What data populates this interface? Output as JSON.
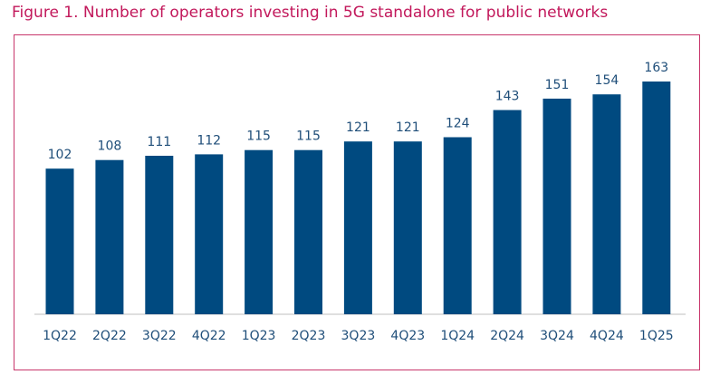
{
  "figure": {
    "title": "Figure 1. Number of operators investing in 5G standalone for public networks"
  },
  "colors": {
    "bar": "#004a80",
    "labels": "#1f4e79",
    "title": "#c2185b",
    "border": "#c8366b"
  },
  "chart_data": {
    "type": "bar",
    "title": "Figure 1. Number of operators investing in 5G standalone for public networks",
    "categories": [
      "1Q22",
      "2Q22",
      "3Q22",
      "4Q22",
      "1Q23",
      "2Q23",
      "3Q23",
      "4Q23",
      "1Q24",
      "2Q24",
      "3Q24",
      "4Q24",
      "1Q25"
    ],
    "values": [
      102,
      108,
      111,
      112,
      115,
      115,
      121,
      121,
      124,
      143,
      151,
      154,
      163
    ],
    "xlabel": "",
    "ylabel": "",
    "ylim": [
      0,
      163
    ],
    "grid": false,
    "legend": "none",
    "data_labels": true
  }
}
